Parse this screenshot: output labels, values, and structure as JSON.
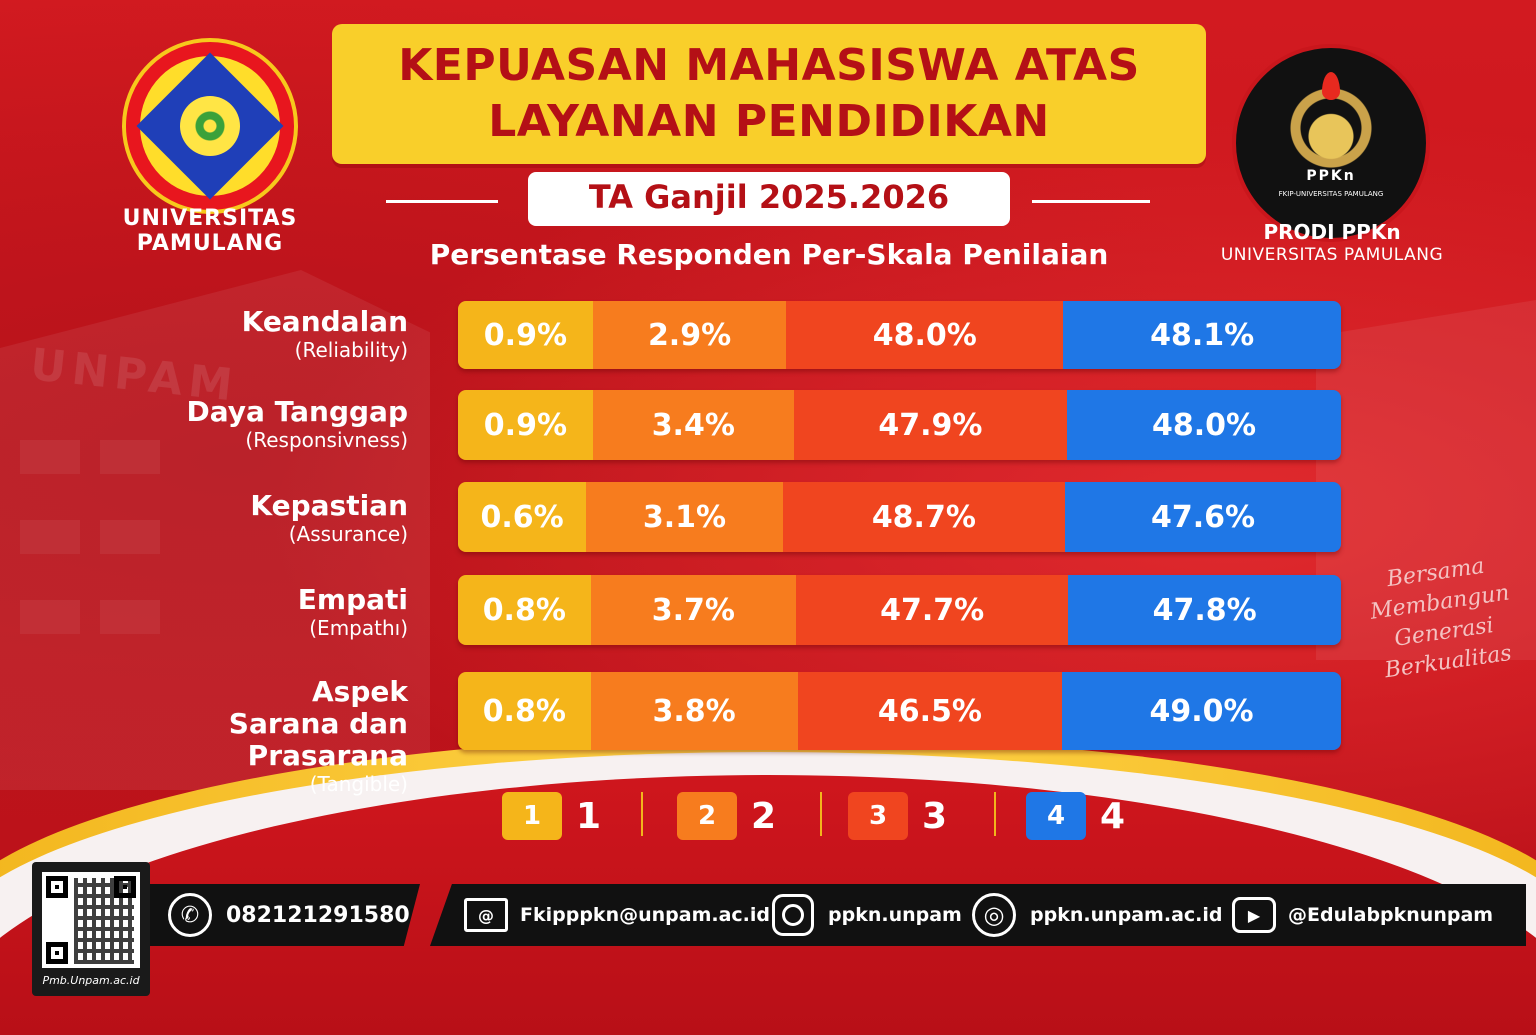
{
  "header": {
    "title_line1": "KEPUASAN MAHASISWA ATAS",
    "title_line2": "LAYANAN PENDIDIKAN",
    "subtitle": "TA Ganjil 2025.2026"
  },
  "logos": {
    "left_line1": "UNIVERSITAS",
    "left_line2": "PAMULANG",
    "right_line1": "PRODI PPKn",
    "right_line2": "UNIVERSITAS PAMULANG",
    "right_badge": "PPKn",
    "right_badge_sub": "FKIP-UNIVERSITAS PAMULANG"
  },
  "tagline": [
    "Bersama",
    "Membangun",
    "Generasi",
    "Berkualitas"
  ],
  "colors": {
    "scale1": "#f5b51a",
    "scale2": "#f77c1e",
    "scale3": "#f0451f",
    "scale4": "#1f77e6",
    "background": "#c8141c",
    "title_box": "#f9cf2a"
  },
  "chart_data": {
    "type": "bar",
    "orientation": "horizontal",
    "stacked": true,
    "title": "Persentase Responden Per-Skala Penilaian",
    "categories": [
      {
        "name": "Keandalan",
        "sub": "(Reliability)"
      },
      {
        "name": "Daya Tanggap",
        "sub": "(Responsivness)"
      },
      {
        "name": "Kepastian",
        "sub": "(Assurance)"
      },
      {
        "name": "Empati",
        "sub": "(Empathı)"
      },
      {
        "name": "Aspek Sarana dan Prasarana",
        "sub": "(Tangible)"
      }
    ],
    "series": [
      {
        "name": "1",
        "values": [
          0.9,
          0.9,
          0.6,
          0.8,
          0.8
        ],
        "labels": [
          "0.9%",
          "0.9%",
          "0.6%",
          "0.8%",
          "0.8%"
        ]
      },
      {
        "name": "2",
        "values": [
          2.9,
          3.4,
          3.1,
          3.7,
          3.8
        ],
        "labels": [
          "2.9%",
          "3.4%",
          "3.1%",
          "3.7%",
          "3.8%"
        ]
      },
      {
        "name": "3",
        "values": [
          48.0,
          47.9,
          48.7,
          47.7,
          46.5
        ],
        "labels": [
          "48.0%",
          "47.9%",
          "48.7%",
          "47.7%",
          "46.5%"
        ]
      },
      {
        "name": "4",
        "values": [
          48.1,
          48.0,
          47.6,
          47.8,
          49.0
        ],
        "labels": [
          "48.1%",
          "48.0%",
          "47.6%",
          "47.8%",
          "49.0%"
        ]
      }
    ],
    "legend": {
      "placement": "bottom",
      "items": [
        {
          "box": "1",
          "label": "1"
        },
        {
          "box": "2",
          "label": "2"
        },
        {
          "box": "3",
          "label": "3"
        },
        {
          "box": "4",
          "label": "4"
        }
      ]
    }
  },
  "footer": {
    "qr_url": "Pmb.Unpam.ac.id",
    "phone": "082121291580",
    "email": "Fkipppkn@unpam.ac.id",
    "instagram": "ppkn.unpam",
    "website": "ppkn.unpam.ac.id",
    "youtube": "@Edulabpknunpam",
    "icons": [
      "whatsapp-icon",
      "mail-icon",
      "instagram-icon",
      "globe-icon",
      "youtube-icon"
    ]
  }
}
